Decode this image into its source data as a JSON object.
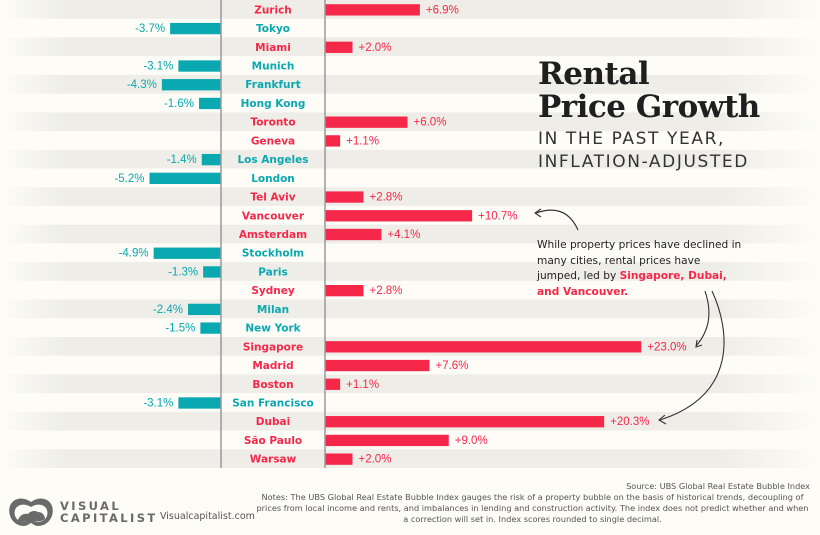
{
  "chart_data": {
    "type": "bar",
    "orientation": "horizontal",
    "title": "Rental Price Growth",
    "subtitle": [
      "IN THE PAST YEAR,",
      "INFLATION-ADJUSTED"
    ],
    "xlabel": "",
    "ylabel": "",
    "unit": "%",
    "categories": [
      "Zurich",
      "Tokyo",
      "Miami",
      "Munich",
      "Frankfurt",
      "Hong Kong",
      "Toronto",
      "Geneva",
      "Los Angeles",
      "London",
      "Tel Aviv",
      "Vancouver",
      "Amsterdam",
      "Stockholm",
      "Paris",
      "Sydney",
      "Milan",
      "New York",
      "Singapore",
      "Madrid",
      "Boston",
      "San Francisco",
      "Dubai",
      "São Paulo",
      "Warsaw"
    ],
    "values": [
      6.9,
      -3.7,
      2.0,
      -3.1,
      -4.3,
      -1.6,
      6.0,
      1.1,
      -1.4,
      -5.2,
      2.8,
      10.7,
      4.1,
      -4.9,
      -1.3,
      2.8,
      -2.4,
      -1.5,
      23.0,
      7.6,
      1.1,
      -3.1,
      20.3,
      9.0,
      2.0
    ],
    "labels": [
      "+6.9%",
      "-3.7%",
      "+2.0%",
      "-3.1%",
      "-4.3%",
      "-1.6%",
      "+6.0%",
      "+1.1%",
      "-1.4%",
      "-5.2%",
      "+2.8%",
      "+10.7%",
      "+4.1%",
      "-4.9%",
      "-1.3%",
      "+2.8%",
      "-2.4%",
      "-1.5%",
      "+23.0%",
      "+7.6%",
      "+1.1%",
      "-3.1%",
      "+20.3%",
      "+9.0%",
      "+2.0%"
    ],
    "colors": {
      "positive": "#f5284a",
      "negative": "#0aa8b0",
      "axis": "#9a9a9a",
      "stripe": "#eeede8",
      "background": "#fdfcf7"
    },
    "xlim": [
      -5.2,
      23.0
    ],
    "grid": false,
    "legend": "none"
  },
  "header": {
    "title_line1": "Rental",
    "title_line2": "Price Growth",
    "subtitle_line1": "IN THE PAST YEAR,",
    "subtitle_line2": "INFLATION-ADJUSTED"
  },
  "annotation": {
    "text": "While property prices have declined in many cities, rental prices have jumped, led by ",
    "highlight": "Singapore, Dubai, and Vancouver."
  },
  "footer": {
    "source": "Source: UBS Global Real Estate Bubble Index",
    "notes": "Notes: The UBS Global Real Estate Bubble Index gauges the risk of a property bubble on the basis of historical trends, decoupling of prices from local income and rents, and imbalances in lending and construction activity. The index does not predict whether and when a correction will set in. Index scores rounded to single decimal.",
    "logo_line1": "VISUAL",
    "logo_line2": "CAPITALIST",
    "website": "Visualcapitalist.com"
  }
}
